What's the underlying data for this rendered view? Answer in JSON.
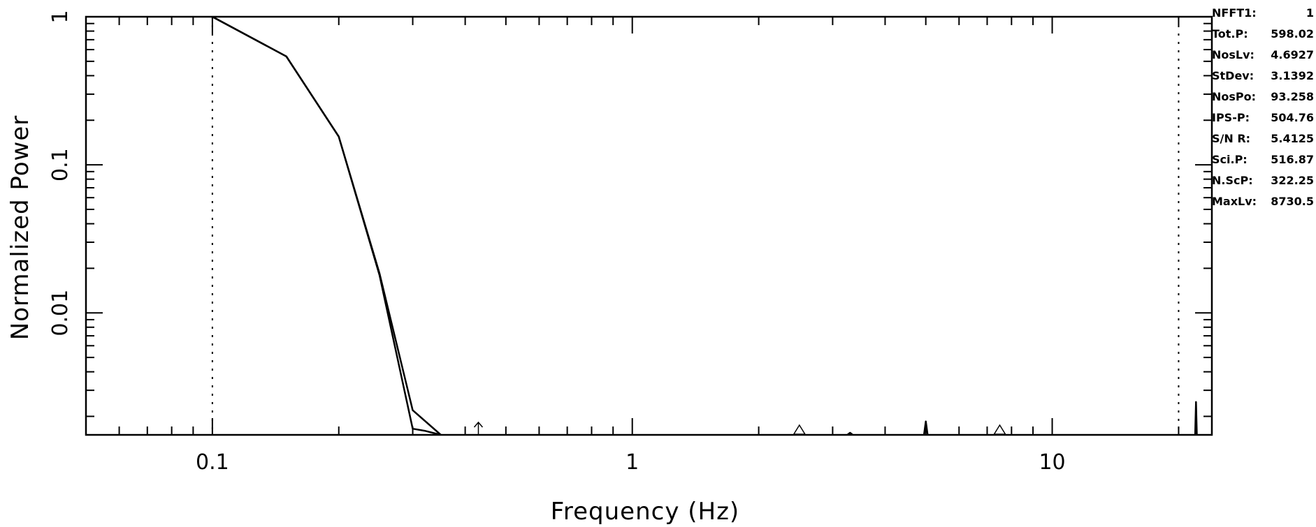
{
  "chart_data": {
    "type": "line",
    "title": "",
    "xlabel": "Frequency (Hz)",
    "ylabel": "Normalized Power",
    "x_scale": "log",
    "y_scale": "log",
    "xlim": [
      0.05,
      24
    ],
    "ylim": [
      0.0015,
      1
    ],
    "x_ticks": [
      {
        "value": 0.1,
        "label": "0.1"
      },
      {
        "value": 1,
        "label": "1"
      },
      {
        "value": 10,
        "label": "10"
      }
    ],
    "y_ticks": [
      {
        "value": 0.01,
        "label": "0.01"
      },
      {
        "value": 0.1,
        "label": "0.1"
      },
      {
        "value": 1,
        "label": "1"
      }
    ],
    "grid": false,
    "legend": "none",
    "series": [
      {
        "color": "#000000",
        "x": [
          0.1,
          0.15,
          0.2,
          0.25,
          0.3,
          0.35
        ],
        "y": [
          1.0,
          0.54,
          0.155,
          0.0185,
          0.0022,
          0.0015
        ]
      },
      {
        "color": "#000000",
        "x": [
          0.1,
          0.15,
          0.2,
          0.25,
          0.3,
          0.32,
          0.35
        ],
        "y": [
          1.0,
          0.54,
          0.155,
          0.018,
          0.00165,
          0.0016,
          0.0015
        ]
      },
      {
        "color": "#000000",
        "x": [
          3.25,
          3.3,
          3.35
        ],
        "y": [
          0.0015,
          0.00155,
          0.0015
        ]
      },
      {
        "color": "#000000",
        "x": [
          4.95,
          5.0,
          5.05
        ],
        "y": [
          0.0015,
          0.00185,
          0.0015
        ]
      },
      {
        "color": "#000000",
        "x": [
          21.9,
          22.0,
          22.1
        ],
        "y": [
          0.0015,
          0.0025,
          0.0015
        ]
      }
    ],
    "vertical_dotted_lines": [
      0.1,
      20
    ],
    "markers": [
      {
        "shape": "arrow-up",
        "x": 0.43
      },
      {
        "shape": "triangle",
        "x": 2.5
      },
      {
        "shape": "triangle",
        "x": 7.5
      }
    ]
  },
  "stats": [
    {
      "label": "NFFT1:",
      "value": "1"
    },
    {
      "label": "Tot.P:",
      "value": "598.02"
    },
    {
      "label": "NosLv:",
      "value": "4.6927"
    },
    {
      "label": "StDev:",
      "value": "3.1392"
    },
    {
      "label": "NosPo:",
      "value": "93.258"
    },
    {
      "label": "IPS-P:",
      "value": "504.76"
    },
    {
      "label": "S/N R:",
      "value": "5.4125"
    },
    {
      "label": "Sci.P:",
      "value": "516.87"
    },
    {
      "label": "N.ScP:",
      "value": "322.25"
    },
    {
      "label": "MaxLv:",
      "value": "8730.5"
    }
  ]
}
